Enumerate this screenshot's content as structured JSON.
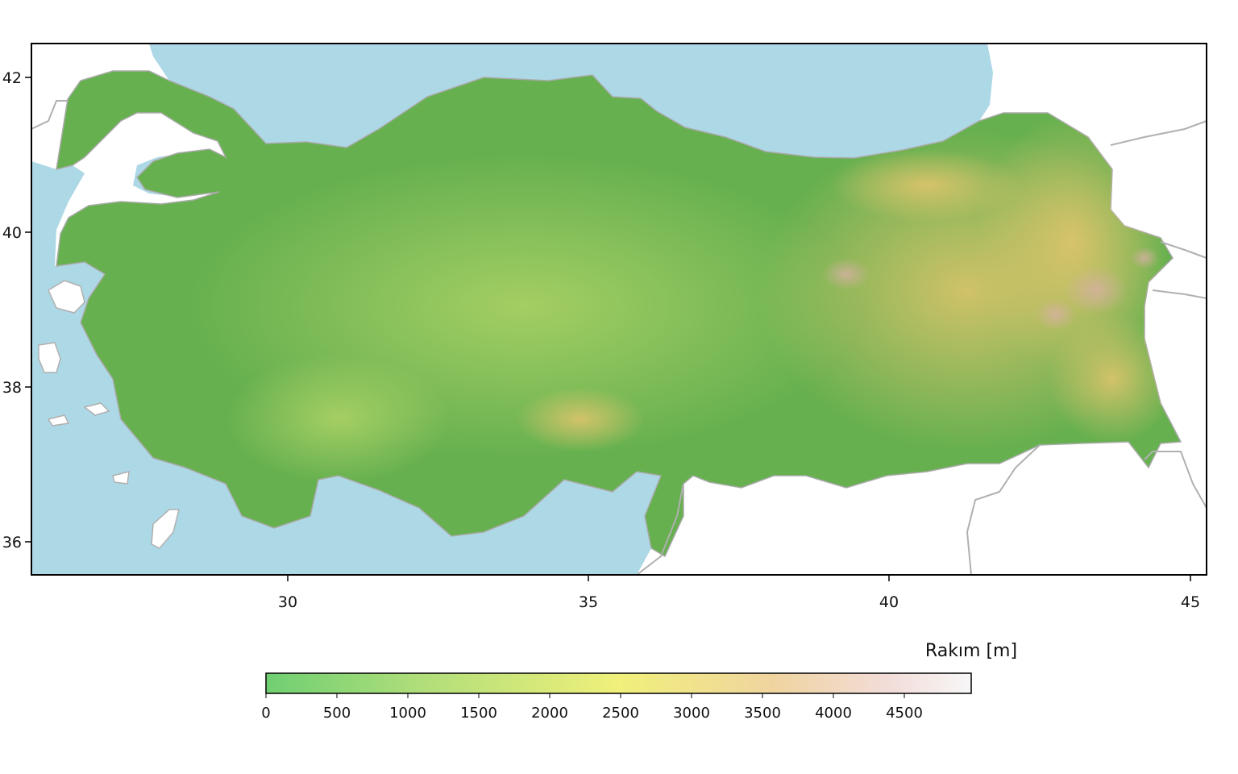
{
  "map": {
    "x_ticks": [
      "30",
      "35",
      "40",
      "45"
    ],
    "y_ticks": [
      "42",
      "40",
      "38",
      "36"
    ],
    "colors": {
      "sea": "#add8e6",
      "neighbor_land": "#ffffff",
      "border": "#b0b0b0",
      "lowland": "#5fae4f",
      "upland": "#9ccf5f",
      "highland": "#e6cf7a",
      "peak": "#d9b3a6"
    }
  },
  "colorbar": {
    "title": "Rakım [m]",
    "ticks": [
      "0",
      "500",
      "1000",
      "1500",
      "2000",
      "2500",
      "3000",
      "3500",
      "4000",
      "4500"
    ],
    "gradient": [
      "#6fcf72",
      "#b0de7a",
      "#f0f07a",
      "#f0d4a0",
      "#f2dcd8",
      "#f7f7f7"
    ]
  }
}
